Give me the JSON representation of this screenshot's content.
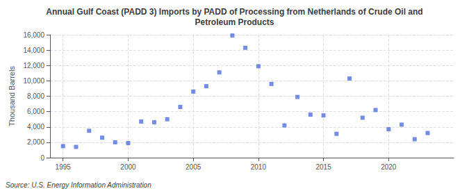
{
  "chart_data": {
    "type": "scatter",
    "title": "Annual Gulf Coast (PADD 3) Imports by PADD of Processing from Netherlands of Crude Oil and\nPetroleum Products",
    "ylabel": "Thousand Barrels",
    "annotations": [
      "Source: U.S. Energy Information Administration"
    ],
    "x": [
      1995,
      1996,
      1997,
      1998,
      1999,
      2000,
      2001,
      2002,
      2003,
      2004,
      2005,
      2006,
      2007,
      2008,
      2009,
      2010,
      2011,
      2012,
      2013,
      2014,
      2015,
      2016,
      2017,
      2018,
      2019,
      2020,
      2021,
      2022,
      2023
    ],
    "values": [
      1500,
      1400,
      3500,
      2600,
      2000,
      1900,
      4700,
      4600,
      5000,
      6600,
      8600,
      9300,
      11100,
      15900,
      14300,
      11900,
      9600,
      4200,
      7900,
      5600,
      5500,
      3100,
      10300,
      5200,
      6200,
      3700,
      4300,
      2400,
      3200
    ],
    "marker": "square",
    "xlim": [
      1994,
      2025
    ],
    "xticks": [
      1995,
      2000,
      2005,
      2010,
      2015,
      2020
    ],
    "ylim": [
      0,
      16000
    ],
    "yticks": [
      0,
      {
        "value": 2000,
        "label": "2,000"
      },
      {
        "value": 4000,
        "label": "4,000"
      },
      {
        "value": 6000,
        "label": "6,000"
      },
      {
        "value": 8000,
        "label": "8,000"
      },
      {
        "value": 10000,
        "label": "10,000"
      },
      {
        "value": 12000,
        "label": "12,000"
      },
      {
        "value": 14000,
        "label": "14,000"
      },
      {
        "value": 16000,
        "label": "16,000"
      }
    ],
    "grid": true
  }
}
